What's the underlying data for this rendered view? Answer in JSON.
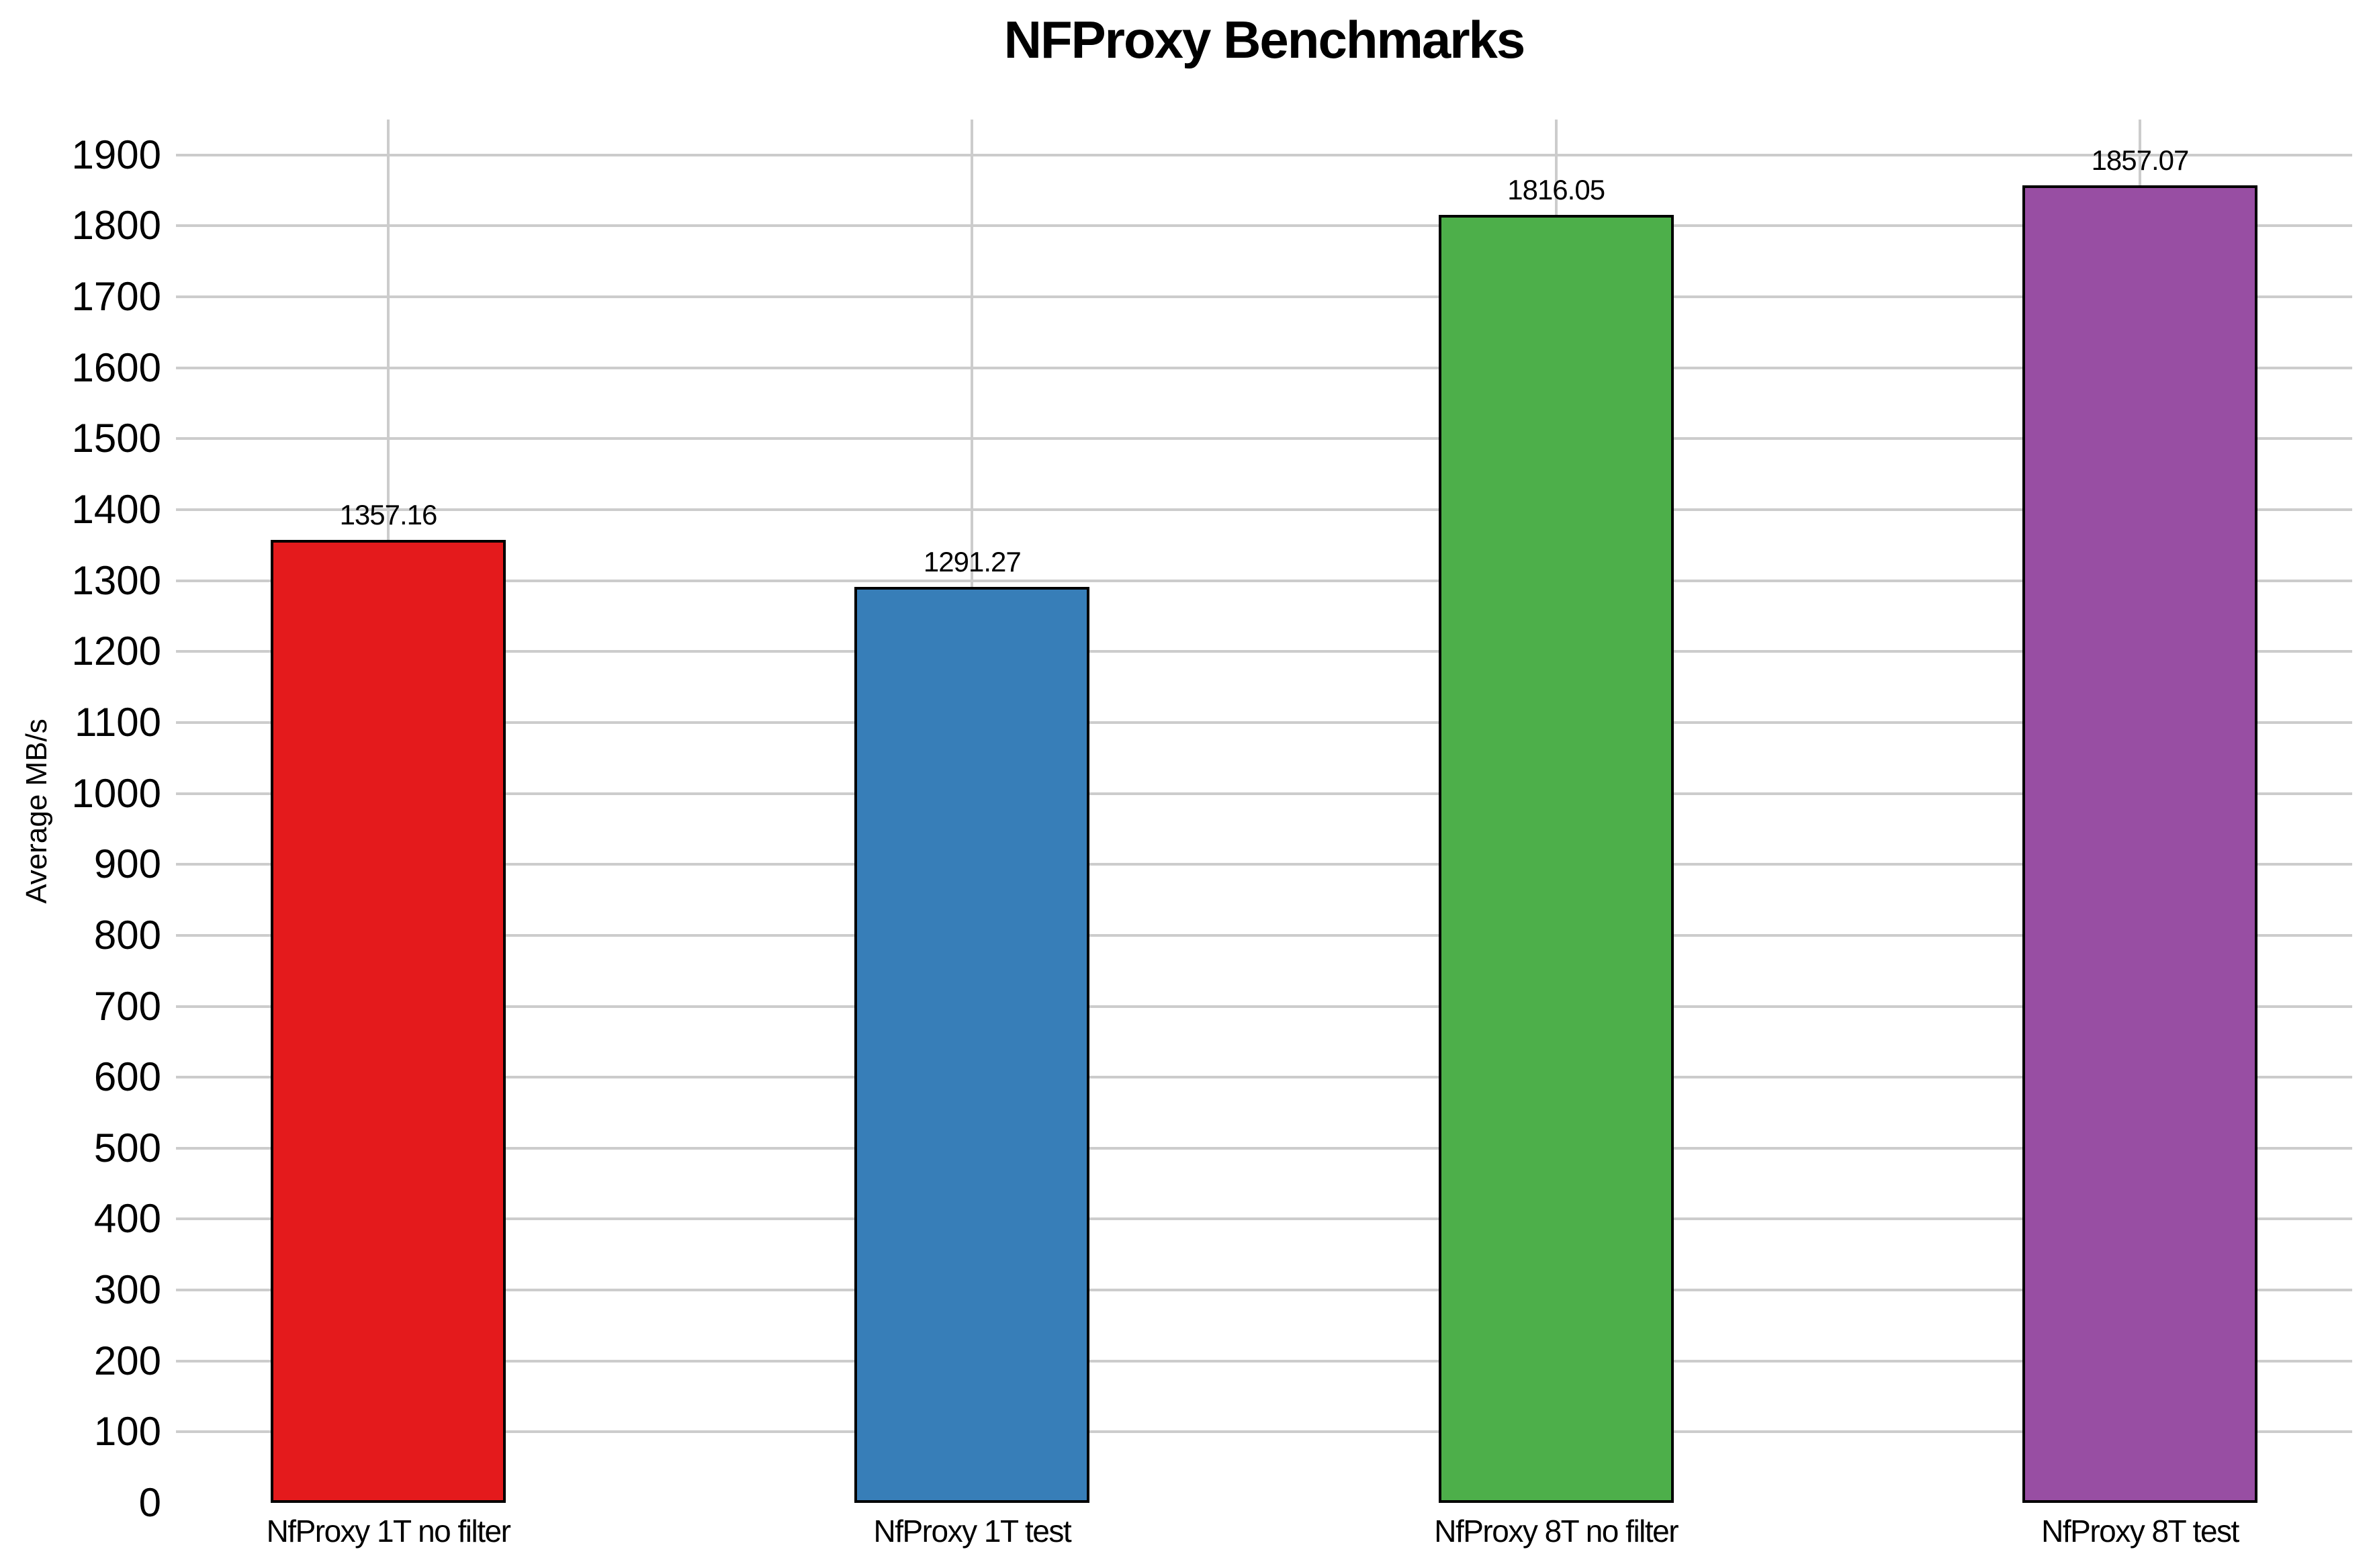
{
  "title": "NFProxy Benchmarks",
  "chart_data": {
    "type": "bar",
    "title": "NFProxy Benchmarks",
    "xlabel": "",
    "ylabel": "Average MB/s",
    "categories": [
      "NfProxy 1T no filter",
      "NfProxy 1T test",
      "NfProxy 8T no filter",
      "NfProxy 8T test"
    ],
    "values": [
      1357.16,
      1291.27,
      1816.05,
      1857.07
    ],
    "value_labels": [
      "1357.16",
      "1291.27",
      "1816.05",
      "1857.07"
    ],
    "bar_colors": [
      "#e41a1c",
      "#377eb8",
      "#4daf4a",
      "#984ea3"
    ],
    "bar_edge_color": "#000000",
    "grid": "on",
    "grid_color": "#cccccc",
    "legend": "none",
    "yticks": [
      0,
      100,
      200,
      300,
      400,
      500,
      600,
      700,
      800,
      900,
      1000,
      1100,
      1200,
      1300,
      1400,
      1500,
      1600,
      1700,
      1800,
      1900
    ],
    "ylim": [
      0,
      1950
    ]
  }
}
